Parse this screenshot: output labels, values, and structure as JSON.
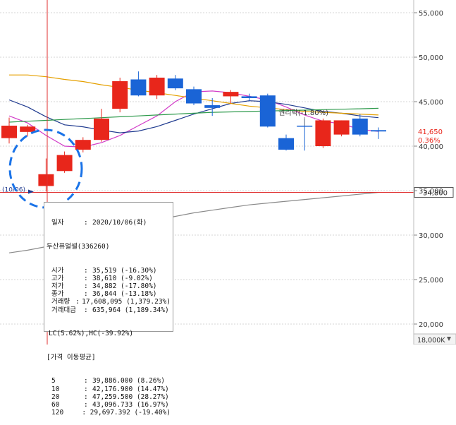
{
  "chart_data": {
    "type": "candlestick",
    "y_axis": {
      "ticks": [
        {
          "value": 55000,
          "label": "55,000"
        },
        {
          "value": 50000,
          "label": "50,000"
        },
        {
          "value": 45000,
          "label": "45,000"
        },
        {
          "value": 40000,
          "label": "40,000"
        },
        {
          "value": 35000,
          "label": "35,000"
        },
        {
          "value": 30000,
          "label": "30,000"
        },
        {
          "value": 25000,
          "label": "25,000"
        },
        {
          "value": 20000,
          "label": "20,000"
        }
      ],
      "ylim": [
        17500,
        57000
      ],
      "position": "right"
    },
    "candles": [
      {
        "o": 40900,
        "h": 43200,
        "l": 40300,
        "c": 42300
      },
      {
        "o": 41600,
        "h": 42400,
        "l": 41100,
        "c": 42200
      },
      {
        "o": 35519,
        "h": 38610,
        "l": 34882,
        "c": 36844
      },
      {
        "o": 37200,
        "h": 39400,
        "l": 37000,
        "c": 39000
      },
      {
        "o": 39600,
        "h": 41000,
        "l": 39300,
        "c": 40700
      },
      {
        "o": 40700,
        "h": 44200,
        "l": 40500,
        "c": 43100
      },
      {
        "o": 44200,
        "h": 47700,
        "l": 43800,
        "c": 47300
      },
      {
        "o": 47500,
        "h": 48400,
        "l": 45600,
        "c": 45700
      },
      {
        "o": 45700,
        "h": 48000,
        "l": 45300,
        "c": 47700
      },
      {
        "o": 47600,
        "h": 48000,
        "l": 46300,
        "c": 46500
      },
      {
        "o": 46400,
        "h": 46700,
        "l": 44600,
        "c": 44800
      },
      {
        "o": 44600,
        "h": 45400,
        "l": 43400,
        "c": 44300
      },
      {
        "o": 45600,
        "h": 46300,
        "l": 44800,
        "c": 46100
      },
      {
        "o": 45600,
        "h": 45900,
        "l": 45100,
        "c": 45400
      },
      {
        "o": 45700,
        "h": 45900,
        "l": 42100,
        "c": 42200
      },
      {
        "o": 40900,
        "h": 41300,
        "l": 39500,
        "c": 39600
      },
      {
        "o": 42300,
        "h": 43100,
        "l": 39500,
        "c": 42200
      },
      {
        "o": 40000,
        "h": 43100,
        "l": 39800,
        "c": 42900
      },
      {
        "o": 41300,
        "h": 42900,
        "l": 41100,
        "c": 42900
      },
      {
        "o": 43100,
        "h": 43600,
        "l": 41100,
        "c": 41300
      },
      {
        "o": 41800,
        "h": 42100,
        "l": 40800,
        "c": 41650
      }
    ],
    "moving_averages": [
      {
        "name": "5",
        "color": "#d23cc8",
        "values": [
          43400,
          42600,
          41200,
          40000,
          39886,
          40400,
          41200,
          42300,
          43400,
          45000,
          46100,
          46200,
          46000,
          45600,
          45200,
          44400,
          43500,
          42800,
          42500,
          41900,
          41650
        ]
      },
      {
        "name": "10",
        "color": "#1f3a8f",
        "values": [
          45200,
          44400,
          43300,
          42400,
          42177,
          41800,
          41500,
          41700,
          42200,
          42900,
          43600,
          44200,
          44800,
          45100,
          45000,
          44700,
          44300,
          43900,
          43700,
          43400,
          43200
        ]
      },
      {
        "name": "20",
        "color": "#e5a000",
        "values": [
          48000,
          48000,
          47800,
          47500,
          47260,
          46900,
          46600,
          46300,
          46000,
          45700,
          45400,
          45100,
          44800,
          44500,
          44300,
          44100,
          43900,
          43800,
          43700,
          43600,
          43500
        ]
      },
      {
        "name": "60",
        "color": "#2e9a4c",
        "values": [
          42700,
          42800,
          42900,
          43000,
          43097,
          43200,
          43300,
          43400,
          43500,
          43600,
          43700,
          43800,
          43850,
          43900,
          43950,
          44000,
          44050,
          44100,
          44150,
          44200,
          44250
        ]
      },
      {
        "name": "120",
        "color": "#8a8a8a",
        "values": [
          28000,
          28300,
          28700,
          29200,
          29697,
          30200,
          30700,
          31200,
          31700,
          32100,
          32500,
          32800,
          33100,
          33400,
          33600,
          33800,
          34000,
          34200,
          34400,
          34600,
          34800
        ]
      }
    ],
    "crosshair_price": {
      "value": 34800,
      "label": "34,800"
    },
    "last_price": {
      "value": 41650,
      "label": "41,650",
      "change": "0.36%"
    },
    "annotations": [
      {
        "label": "(10/06)",
        "value": 34800
      },
      {
        "label": "권리락(-1.80%)",
        "candle_index": 16,
        "value": 43100
      }
    ],
    "bottom_label": "18,000K"
  },
  "tooltip": {
    "date_label": "일자",
    "date_value": "2020/10/06(화)",
    "name": "두산퓨얼셀(336260)",
    "rows": [
      {
        "k": "시가",
        "v": "35,519 (-16.30%)"
      },
      {
        "k": "고가",
        "v": "38,610 (-9.02%)"
      },
      {
        "k": "저가",
        "v": "34,882 (-17.80%)"
      },
      {
        "k": "종가",
        "v": "36,844 (-13.18%)"
      },
      {
        "k": "거래량",
        "v": "17,608,095 (1,379.23%)"
      },
      {
        "k": "거래대금",
        "v": "635,964 (1,189.34%)"
      }
    ],
    "lc_hc": "LC(5.62%),HC(-39.92%)",
    "ma_header": "[가격 이동평균]",
    "ma_rows": [
      {
        "k": "5",
        "v": "39,886.000 (8.26%)"
      },
      {
        "k": "10",
        "v": "42,176.900 (14.47%)"
      },
      {
        "k": "20",
        "v": "47,259.500 (28.27%)"
      },
      {
        "k": "60",
        "v": "43,096.733 (16.97%)"
      },
      {
        "k": "120",
        "v": "29,697.392 (-19.40%)"
      }
    ]
  },
  "colors": {
    "up": "#e8261b",
    "down": "#1a64d6",
    "grid": "#d4d4d4",
    "crosshair": "#e03030",
    "highlight": "#1a73e8"
  }
}
